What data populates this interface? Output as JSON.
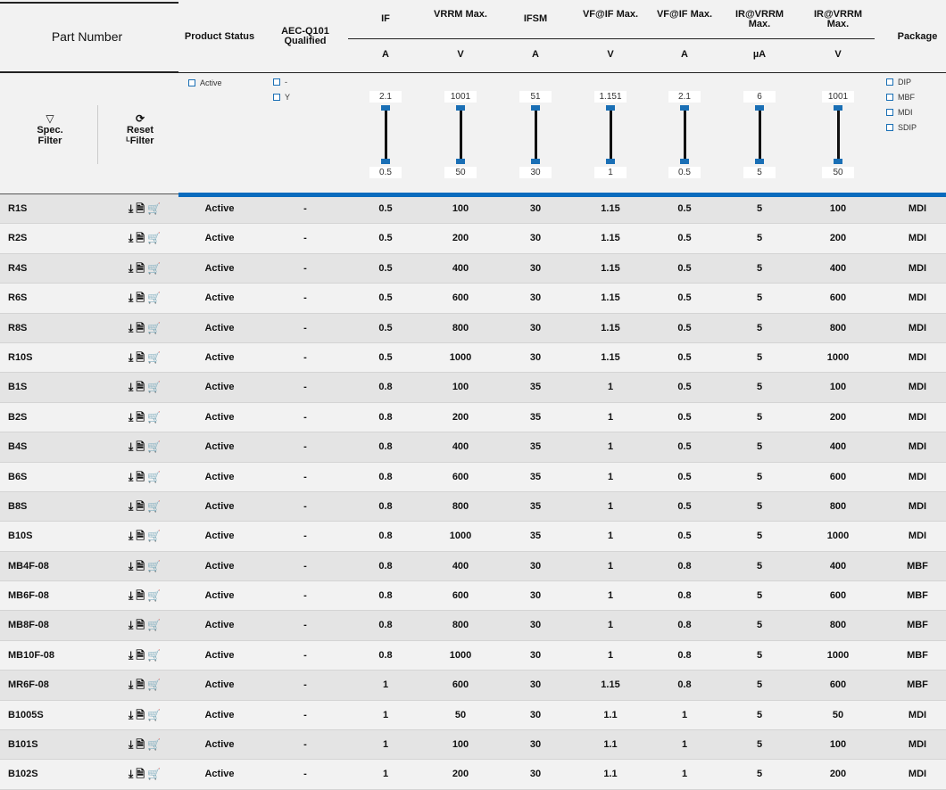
{
  "header": {
    "part_number": "Part Number",
    "product_status": "Product Status",
    "aec": "AEC-Q101 Qualified",
    "columns": [
      {
        "name": "IF",
        "unit": "A"
      },
      {
        "name": "VRRM Max.",
        "unit": "V"
      },
      {
        "name": "IFSM",
        "unit": "A"
      },
      {
        "name": "VF@IF Max.",
        "unit": "V"
      },
      {
        "name": "VF@IF Max.",
        "unit": "A"
      },
      {
        "name": "IR@VRRM Max.",
        "unit": "µA"
      },
      {
        "name": "IR@VRRM Max.",
        "unit": "V"
      }
    ],
    "package": "Package"
  },
  "filters": {
    "spec_filter": "Spec. Filter",
    "reset_filter": "Reset ᴸFilter",
    "status_options": [
      "Active"
    ],
    "aec_options": [
      "-",
      "Y"
    ],
    "package_options": [
      "DIP",
      "MBF",
      "MDI",
      "SDIP"
    ],
    "sliders": [
      {
        "max": "2.1",
        "min": "0.5"
      },
      {
        "max": "1001",
        "min": "50"
      },
      {
        "max": "51",
        "min": "30"
      },
      {
        "max": "1.151",
        "min": "1"
      },
      {
        "max": "2.1",
        "min": "0.5"
      },
      {
        "max": "6",
        "min": "5"
      },
      {
        "max": "1001",
        "min": "50"
      }
    ]
  },
  "accent": "#0a6bbd",
  "row_icons": [
    "download-icon",
    "datasheet-icon",
    "cart-icon"
  ],
  "rows": [
    [
      "R1S",
      "Active",
      "-",
      "0.5",
      "100",
      "30",
      "1.15",
      "0.5",
      "5",
      "100",
      "MDI"
    ],
    [
      "R2S",
      "Active",
      "-",
      "0.5",
      "200",
      "30",
      "1.15",
      "0.5",
      "5",
      "200",
      "MDI"
    ],
    [
      "R4S",
      "Active",
      "-",
      "0.5",
      "400",
      "30",
      "1.15",
      "0.5",
      "5",
      "400",
      "MDI"
    ],
    [
      "R6S",
      "Active",
      "-",
      "0.5",
      "600",
      "30",
      "1.15",
      "0.5",
      "5",
      "600",
      "MDI"
    ],
    [
      "R8S",
      "Active",
      "-",
      "0.5",
      "800",
      "30",
      "1.15",
      "0.5",
      "5",
      "800",
      "MDI"
    ],
    [
      "R10S",
      "Active",
      "-",
      "0.5",
      "1000",
      "30",
      "1.15",
      "0.5",
      "5",
      "1000",
      "MDI"
    ],
    [
      "B1S",
      "Active",
      "-",
      "0.8",
      "100",
      "35",
      "1",
      "0.5",
      "5",
      "100",
      "MDI"
    ],
    [
      "B2S",
      "Active",
      "-",
      "0.8",
      "200",
      "35",
      "1",
      "0.5",
      "5",
      "200",
      "MDI"
    ],
    [
      "B4S",
      "Active",
      "-",
      "0.8",
      "400",
      "35",
      "1",
      "0.5",
      "5",
      "400",
      "MDI"
    ],
    [
      "B6S",
      "Active",
      "-",
      "0.8",
      "600",
      "35",
      "1",
      "0.5",
      "5",
      "600",
      "MDI"
    ],
    [
      "B8S",
      "Active",
      "-",
      "0.8",
      "800",
      "35",
      "1",
      "0.5",
      "5",
      "800",
      "MDI"
    ],
    [
      "B10S",
      "Active",
      "-",
      "0.8",
      "1000",
      "35",
      "1",
      "0.5",
      "5",
      "1000",
      "MDI"
    ],
    [
      "MB4F-08",
      "Active",
      "-",
      "0.8",
      "400",
      "30",
      "1",
      "0.8",
      "5",
      "400",
      "MBF"
    ],
    [
      "MB6F-08",
      "Active",
      "-",
      "0.8",
      "600",
      "30",
      "1",
      "0.8",
      "5",
      "600",
      "MBF"
    ],
    [
      "MB8F-08",
      "Active",
      "-",
      "0.8",
      "800",
      "30",
      "1",
      "0.8",
      "5",
      "800",
      "MBF"
    ],
    [
      "MB10F-08",
      "Active",
      "-",
      "0.8",
      "1000",
      "30",
      "1",
      "0.8",
      "5",
      "1000",
      "MBF"
    ],
    [
      "MR6F-08",
      "Active",
      "-",
      "1",
      "600",
      "30",
      "1.15",
      "0.8",
      "5",
      "600",
      "MBF"
    ],
    [
      "B1005S",
      "Active",
      "-",
      "1",
      "50",
      "30",
      "1.1",
      "1",
      "5",
      "50",
      "MDI"
    ],
    [
      "B101S",
      "Active",
      "-",
      "1",
      "100",
      "30",
      "1.1",
      "1",
      "5",
      "100",
      "MDI"
    ],
    [
      "B102S",
      "Active",
      "-",
      "1",
      "200",
      "30",
      "1.1",
      "1",
      "5",
      "200",
      "MDI"
    ]
  ]
}
